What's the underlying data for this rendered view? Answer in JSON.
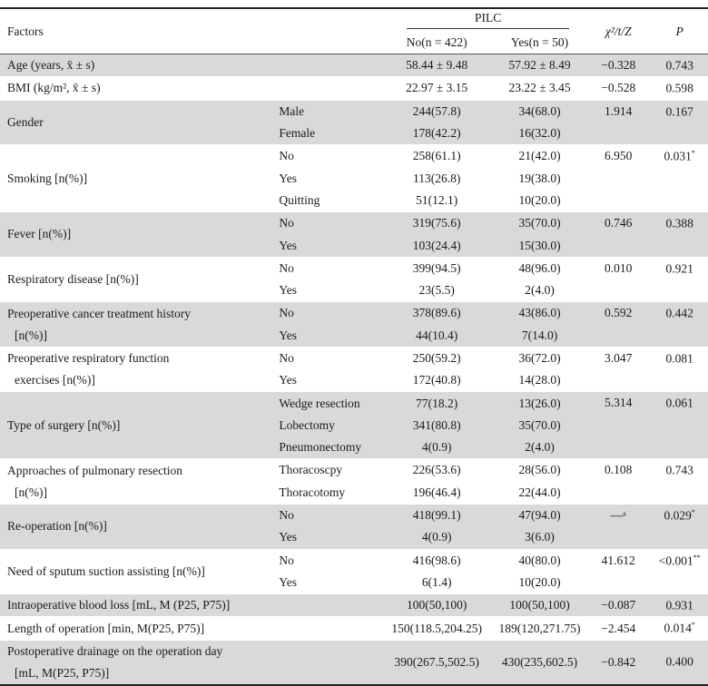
{
  "header": {
    "factors": "Factors",
    "pilc": "PILC",
    "no": "No(n = 422)",
    "yes": "Yes(n = 50)",
    "stat": "χ²/t/Z",
    "p": "P"
  },
  "groups": [
    {
      "label": [
        "Age (years, x̄ ± s)"
      ],
      "rows": [
        {
          "sub": "",
          "no": "58.44 ± 9.48",
          "yes": "57.92 ± 8.49"
        }
      ],
      "stat": "−0.328",
      "p": "0.743",
      "sig": ""
    },
    {
      "label": [
        "BMI (kg/m², x̄ ± s)"
      ],
      "rows": [
        {
          "sub": "",
          "no": "22.97 ± 3.15",
          "yes": "23.22 ± 3.45"
        }
      ],
      "stat": "−0.528",
      "p": "0.598",
      "sig": ""
    },
    {
      "label": [
        "Gender"
      ],
      "rows": [
        {
          "sub": "Male",
          "no": "244(57.8)",
          "yes": "34(68.0)"
        },
        {
          "sub": "Female",
          "no": "178(42.2)",
          "yes": "16(32.0)"
        }
      ],
      "stat": "1.914",
      "p": "0.167",
      "sig": ""
    },
    {
      "label": [
        "Smoking [n(%)]"
      ],
      "rows": [
        {
          "sub": "No",
          "no": "258(61.1)",
          "yes": "21(42.0)"
        },
        {
          "sub": "Yes",
          "no": "113(26.8)",
          "yes": "19(38.0)"
        },
        {
          "sub": "Quitting",
          "no": "51(12.1)",
          "yes": "10(20.0)"
        }
      ],
      "stat": "6.950",
      "p": "0.031",
      "sig": "*"
    },
    {
      "label": [
        "Fever [n(%)]"
      ],
      "rows": [
        {
          "sub": "No",
          "no": "319(75.6)",
          "yes": "35(70.0)"
        },
        {
          "sub": "Yes",
          "no": "103(24.4)",
          "yes": "15(30.0)"
        }
      ],
      "stat": "0.746",
      "p": "0.388",
      "sig": ""
    },
    {
      "label": [
        "Respiratory disease [n(%)]"
      ],
      "rows": [
        {
          "sub": "No",
          "no": "399(94.5)",
          "yes": "48(96.0)"
        },
        {
          "sub": "Yes",
          "no": "23(5.5)",
          "yes": "2(4.0)"
        }
      ],
      "stat": "0.010",
      "p": "0.921",
      "sig": ""
    },
    {
      "label": [
        "Preoperative cancer treatment history",
        "[n(%)]"
      ],
      "rows": [
        {
          "sub": "No",
          "no": "378(89.6)",
          "yes": "43(86.0)"
        },
        {
          "sub": "Yes",
          "no": "44(10.4)",
          "yes": "7(14.0)"
        }
      ],
      "stat": "0.592",
      "p": "0.442",
      "sig": ""
    },
    {
      "label": [
        "Preoperative respiratory function",
        "exercises [n(%)]"
      ],
      "rows": [
        {
          "sub": "No",
          "no": "250(59.2)",
          "yes": "36(72.0)"
        },
        {
          "sub": "Yes",
          "no": "172(40.8)",
          "yes": "14(28.0)"
        }
      ],
      "stat": "3.047",
      "p": "0.081",
      "sig": ""
    },
    {
      "label": [
        "Type of surgery [n(%)]"
      ],
      "rows": [
        {
          "sub": "Wedge resection",
          "no": "77(18.2)",
          "yes": "13(26.0)"
        },
        {
          "sub": "Lobectomy",
          "no": "341(80.8)",
          "yes": "35(70.0)"
        },
        {
          "sub": "Pneumonectomy",
          "no": "4(0.9)",
          "yes": "2(4.0)"
        }
      ],
      "stat": "5.314",
      "p": "0.061",
      "sig": ""
    },
    {
      "label": [
        "Approaches of pulmonary resection",
        "[n(%)]"
      ],
      "rows": [
        {
          "sub": "Thoracoscpy",
          "no": "226(53.6)",
          "yes": "28(56.0)"
        },
        {
          "sub": "Thoracotomy",
          "no": "196(46.4)",
          "yes": "22(44.0)"
        }
      ],
      "stat": "0.108",
      "p": "0.743",
      "sig": ""
    },
    {
      "label": [
        "Re-operation [n(%)]"
      ],
      "rows": [
        {
          "sub": "No",
          "no": "418(99.1)",
          "yes": "47(94.0)"
        },
        {
          "sub": "Yes",
          "no": "4(0.9)",
          "yes": "3(6.0)"
        }
      ],
      "stat": "—ᵃ",
      "p": "0.029",
      "sig": "*"
    },
    {
      "label": [
        "Need of sputum suction assisting [n(%)]"
      ],
      "rows": [
        {
          "sub": "No",
          "no": "416(98.6)",
          "yes": "40(80.0)"
        },
        {
          "sub": "Yes",
          "no": "6(1.4)",
          "yes": "10(20.0)"
        }
      ],
      "stat": "41.612",
      "p": "<0.001",
      "sig": "**"
    },
    {
      "label": [
        "Intraoperative blood loss [mL, M (P25, P75)]"
      ],
      "rows": [
        {
          "sub": "",
          "no": "100(50,100)",
          "yes": "100(50,100)"
        }
      ],
      "stat": "−0.087",
      "p": "0.931",
      "sig": ""
    },
    {
      "label": [
        "Length of operation [min, M(P25, P75)]"
      ],
      "rows": [
        {
          "sub": "",
          "no": "150(118.5,204.25)",
          "yes": "189(120,271.75)"
        }
      ],
      "stat": "−2.454",
      "p": "0.014",
      "sig": "*"
    },
    {
      "label": [
        "Postoperative drainage on the operation day",
        "[mL, M(P25, P75)]"
      ],
      "rows": [
        {
          "sub": "",
          "no": "390(267.5,502.5)",
          "yes": "430(235,602.5)"
        }
      ],
      "stat": "−0.842",
      "p": "0.400",
      "sig": ""
    }
  ]
}
